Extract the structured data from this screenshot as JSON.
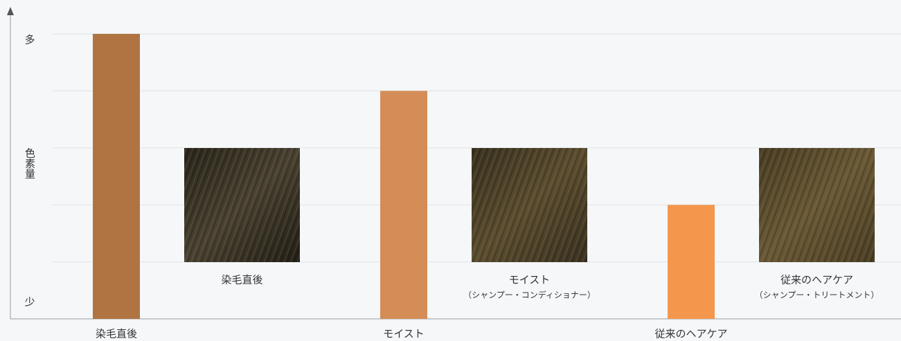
{
  "chart_data": {
    "type": "bar",
    "y_axis_label": "色素量",
    "y_top_label": "多",
    "y_bottom_label": "少",
    "categories": [
      "染毛直後",
      "モイスト",
      "従来のヘアケア"
    ],
    "values": [
      5,
      4,
      2
    ],
    "colors": [
      "#b07442",
      "#d48d56",
      "#f4974d"
    ],
    "ylim": [
      0,
      5
    ],
    "gridlines": [
      1,
      2,
      3,
      4,
      5
    ],
    "swatches": [
      {
        "label": "染毛直後"
      },
      {
        "label": "モイスト",
        "sublabel": "（シャンプー・コンディショナー）"
      },
      {
        "label": "従来のヘアケア",
        "sublabel": "（シャンプー・トリートメント）"
      }
    ]
  }
}
